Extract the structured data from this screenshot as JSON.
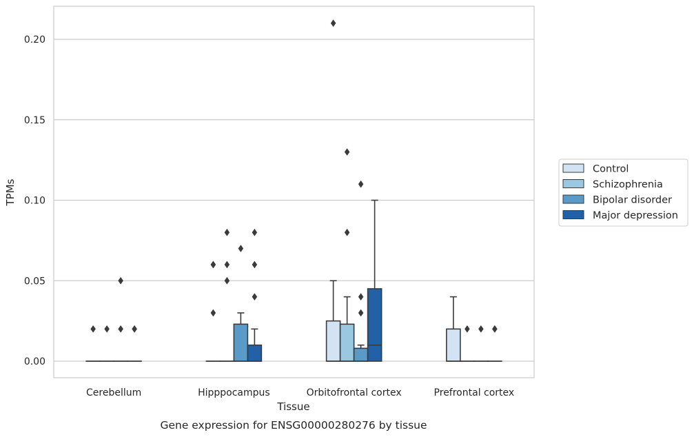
{
  "chart_data": {
    "type": "box",
    "title": "",
    "caption": "Gene expression for ENSG00000280276 by tissue",
    "xlabel": "Tissue",
    "ylabel": "TPMs",
    "ylim": [
      -0.01,
      0.22
    ],
    "yticks": [
      0.0,
      0.05,
      0.1,
      0.15,
      0.2
    ],
    "ytick_labels": [
      "0.00",
      "0.05",
      "0.10",
      "0.15",
      "0.20"
    ],
    "grid": "horizontal",
    "legend_position": "right",
    "categories": [
      "Cerebellum",
      "Hipppocampus",
      "Orbitofrontal cortex",
      "Prefrontal cortex"
    ],
    "series": [
      {
        "name": "Control",
        "color": "#d2e3f3",
        "boxes": [
          {
            "q1": 0,
            "median": 0,
            "q3": 0,
            "whislo": 0,
            "whishi": 0,
            "fliers": [
              0.02
            ]
          },
          {
            "q1": 0,
            "median": 0,
            "q3": 0,
            "whislo": 0,
            "whishi": 0,
            "fliers": [
              0.03,
              0.06,
              0.06
            ]
          },
          {
            "q1": 0,
            "median": 0,
            "q3": 0.025,
            "whislo": 0,
            "whishi": 0.05,
            "fliers": [
              0.21
            ]
          },
          {
            "q1": 0,
            "median": 0,
            "q3": 0.02,
            "whislo": 0,
            "whishi": 0.04,
            "fliers": []
          }
        ]
      },
      {
        "name": "Schizophrenia",
        "color": "#9ac8e0",
        "boxes": [
          {
            "q1": 0,
            "median": 0,
            "q3": 0,
            "whislo": 0,
            "whishi": 0,
            "fliers": [
              0.02
            ]
          },
          {
            "q1": 0,
            "median": 0,
            "q3": 0,
            "whislo": 0,
            "whishi": 0,
            "fliers": [
              0.05,
              0.06,
              0.08
            ]
          },
          {
            "q1": 0,
            "median": 0,
            "q3": 0.023,
            "whislo": 0,
            "whishi": 0.04,
            "fliers": [
              0.08,
              0.13
            ]
          },
          {
            "q1": 0,
            "median": 0,
            "q3": 0,
            "whislo": 0,
            "whishi": 0,
            "fliers": [
              0.02
            ]
          }
        ]
      },
      {
        "name": "Bipolar disorder",
        "color": "#5a9ac8",
        "boxes": [
          {
            "q1": 0,
            "median": 0,
            "q3": 0,
            "whislo": 0,
            "whishi": 0,
            "fliers": [
              0.02,
              0.05
            ]
          },
          {
            "q1": 0,
            "median": 0,
            "q3": 0.023,
            "whislo": 0,
            "whishi": 0.03,
            "fliers": [
              0.07
            ]
          },
          {
            "q1": 0,
            "median": 0,
            "q3": 0.008,
            "whislo": 0,
            "whishi": 0.01,
            "fliers": [
              0.03,
              0.04,
              0.11
            ]
          },
          {
            "q1": 0,
            "median": 0,
            "q3": 0,
            "whislo": 0,
            "whishi": 0,
            "fliers": [
              0.02
            ]
          }
        ]
      },
      {
        "name": "Major depression",
        "color": "#2361a6",
        "boxes": [
          {
            "q1": 0,
            "median": 0,
            "q3": 0,
            "whislo": 0,
            "whishi": 0,
            "fliers": [
              0.02,
              0.02
            ]
          },
          {
            "q1": 0,
            "median": 0,
            "q3": 0.01,
            "whislo": 0,
            "whishi": 0.02,
            "fliers": [
              0.04,
              0.06,
              0.08
            ]
          },
          {
            "q1": 0,
            "median": 0.01,
            "q3": 0.045,
            "whislo": 0,
            "whishi": 0.1,
            "fliers": []
          },
          {
            "q1": 0,
            "median": 0,
            "q3": 0,
            "whislo": 0,
            "whishi": 0,
            "fliers": [
              0.02,
              0.02
            ]
          }
        ]
      }
    ]
  }
}
